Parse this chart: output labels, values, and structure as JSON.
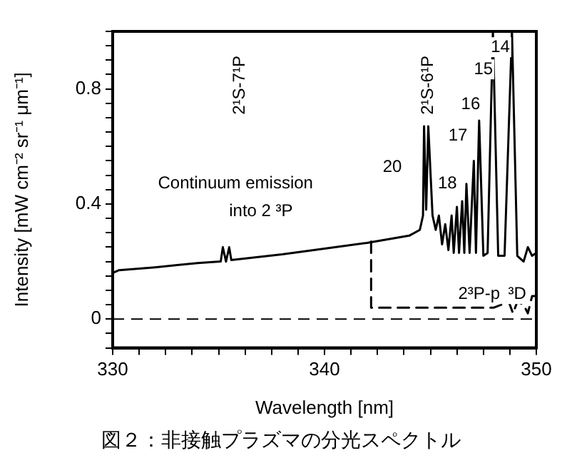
{
  "chart_data": {
    "type": "line",
    "title": "図２：非接触プラズマの分光スペクトル",
    "xlabel": "Wavelength [nm]",
    "ylabel": "Intensity [mW cm⁻² sr⁻¹ μm⁻¹]",
    "xlim": [
      330,
      350
    ],
    "xticks": [
      330,
      {
        "value": 331.25,
        "label": null
      },
      {
        "value": 332.5,
        "label": null
      },
      {
        "value": 333.75,
        "label": null
      },
      {
        "value": 335,
        "label": null
      },
      {
        "value": 336.25,
        "label": null
      },
      {
        "value": 337.5,
        "label": null
      },
      {
        "value": 338.75,
        "label": null
      },
      340,
      {
        "value": 341.25,
        "label": null
      },
      {
        "value": 342.5,
        "label": null
      },
      {
        "value": 343.75,
        "label": null
      },
      {
        "value": 345,
        "label": null
      },
      {
        "value": 346.25,
        "label": null
      },
      {
        "value": 347.5,
        "label": null
      },
      {
        "value": 348.75,
        "label": null
      },
      350
    ],
    "ylim": [
      -0.1,
      1.0
    ],
    "yticks": [
      {
        "value": -0.1,
        "label": null
      },
      {
        "value": -0.05,
        "label": null
      },
      0,
      {
        "value": 0.05,
        "label": null
      },
      {
        "value": 0.1,
        "label": null
      },
      {
        "value": 0.15,
        "label": null
      },
      {
        "value": 0.2,
        "label": null
      },
      {
        "value": 0.25,
        "label": null
      },
      {
        "value": 0.3,
        "label": null
      },
      {
        "value": 0.35,
        "label": null
      },
      0.4,
      {
        "value": 0.45,
        "label": null
      },
      {
        "value": 0.5,
        "label": null
      },
      {
        "value": 0.55,
        "label": null
      },
      {
        "value": 0.6,
        "label": null
      },
      {
        "value": 0.65,
        "label": null
      },
      {
        "value": 0.7,
        "label": null
      },
      {
        "value": 0.75,
        "label": null
      },
      0.8,
      {
        "value": 0.85,
        "label": null
      },
      {
        "value": 0.9,
        "label": null
      },
      {
        "value": 0.95,
        "label": null
      },
      {
        "value": 1.0,
        "label": null
      }
    ],
    "series": [
      {
        "color": "#000000",
        "x": [
          330,
          330.3,
          332,
          334,
          335.1,
          335.2,
          335.35,
          335.5,
          335.6,
          338,
          340,
          342,
          344,
          344.5,
          344.65,
          344.7,
          344.8,
          344.9,
          345.1,
          345.25,
          345.4,
          345.55,
          345.7,
          345.85,
          346.0,
          346.1,
          346.25,
          346.35,
          346.5,
          346.6,
          346.7,
          346.85,
          347.05,
          347.15,
          347.3,
          347.5,
          347.7,
          347.95,
          348.2,
          348.5,
          348.85,
          349.1,
          349.4,
          349.6,
          349.8,
          350
        ],
        "values": [
          0.16,
          0.17,
          0.18,
          0.195,
          0.2,
          0.25,
          0.2,
          0.25,
          0.205,
          0.225,
          0.245,
          0.265,
          0.29,
          0.31,
          0.36,
          0.67,
          0.38,
          0.67,
          0.36,
          0.31,
          0.36,
          0.26,
          0.33,
          0.24,
          0.36,
          0.23,
          0.39,
          0.23,
          0.41,
          0.23,
          0.47,
          0.23,
          0.55,
          0.23,
          0.69,
          0.22,
          0.23,
          1.0,
          0.22,
          0.22,
          1.0,
          0.22,
          0.2,
          0.25,
          0.22,
          0.23
        ]
      },
      {
        "color": "#000000",
        "line_style": "dashed",
        "x": [
          342.2,
          342.2,
          345,
          348,
          348.7,
          348.9,
          349.1,
          349.4,
          349.6,
          349.8,
          350
        ],
        "values": [
          0.27,
          0.04,
          0.04,
          0.04,
          0.06,
          0.02,
          0.06,
          0.05,
          0.02,
          0.08,
          0.08
        ]
      }
    ],
    "ref_lines": [
      {
        "axis": "y",
        "value": 0,
        "line_style": "dashed",
        "color": "#000000"
      }
    ],
    "annotations": [
      "2¹S-7¹P",
      "2¹S-6¹P",
      "Continuum emission",
      "into 2 ³P",
      "20",
      "18",
      "17",
      "16",
      "15",
      "14",
      "2³P-p",
      "³D"
    ],
    "grid": false,
    "legend": false,
    "marker": "none"
  }
}
